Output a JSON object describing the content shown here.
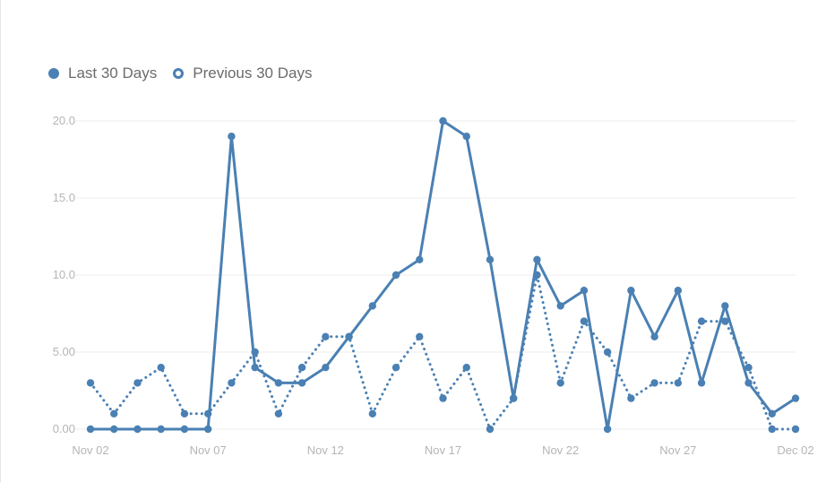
{
  "legend": {
    "current_label": "Last 30 Days",
    "previous_label": "Previous 30 Days"
  },
  "colors": {
    "series": "#4a80b3",
    "grid": "#eeeeee",
    "tick_text": "#b5b5b5"
  },
  "chart_data": {
    "type": "line",
    "x_tick_labels": [
      "Nov 02",
      "Nov 07",
      "Nov 12",
      "Nov 17",
      "Nov 22",
      "Nov 27",
      "Dec 02"
    ],
    "y_tick_labels": [
      "0.00",
      "5.00",
      "10.0",
      "15.0",
      "20.0"
    ],
    "y_ticks": [
      0,
      5,
      10,
      15,
      20
    ],
    "ylim": [
      0,
      20
    ],
    "x": [
      "Nov 02",
      "Nov 03",
      "Nov 04",
      "Nov 05",
      "Nov 06",
      "Nov 07",
      "Nov 08",
      "Nov 09",
      "Nov 10",
      "Nov 11",
      "Nov 12",
      "Nov 13",
      "Nov 14",
      "Nov 15",
      "Nov 16",
      "Nov 17",
      "Nov 18",
      "Nov 19",
      "Nov 20",
      "Nov 21",
      "Nov 22",
      "Nov 23",
      "Nov 24",
      "Nov 25",
      "Nov 26",
      "Nov 27",
      "Nov 28",
      "Nov 29",
      "Nov 30",
      "Dec 01",
      "Dec 02"
    ],
    "grid": true,
    "legend_position": "top-left",
    "series": [
      {
        "name": "Last 30 Days",
        "style": "solid",
        "values": [
          0,
          0,
          0,
          0,
          0,
          0,
          19,
          4,
          3,
          3,
          4,
          6,
          8,
          10,
          11,
          20,
          19,
          11,
          2,
          11,
          8,
          9,
          0,
          9,
          6,
          9,
          3,
          8,
          3,
          1,
          2
        ]
      },
      {
        "name": "Previous 30 Days",
        "style": "dotted",
        "values": [
          3,
          1,
          3,
          4,
          1,
          1,
          3,
          5,
          1,
          4,
          6,
          6,
          1,
          4,
          6,
          2,
          4,
          0,
          2,
          10,
          3,
          7,
          5,
          2,
          3,
          3,
          7,
          7,
          4,
          0,
          0
        ]
      }
    ]
  }
}
